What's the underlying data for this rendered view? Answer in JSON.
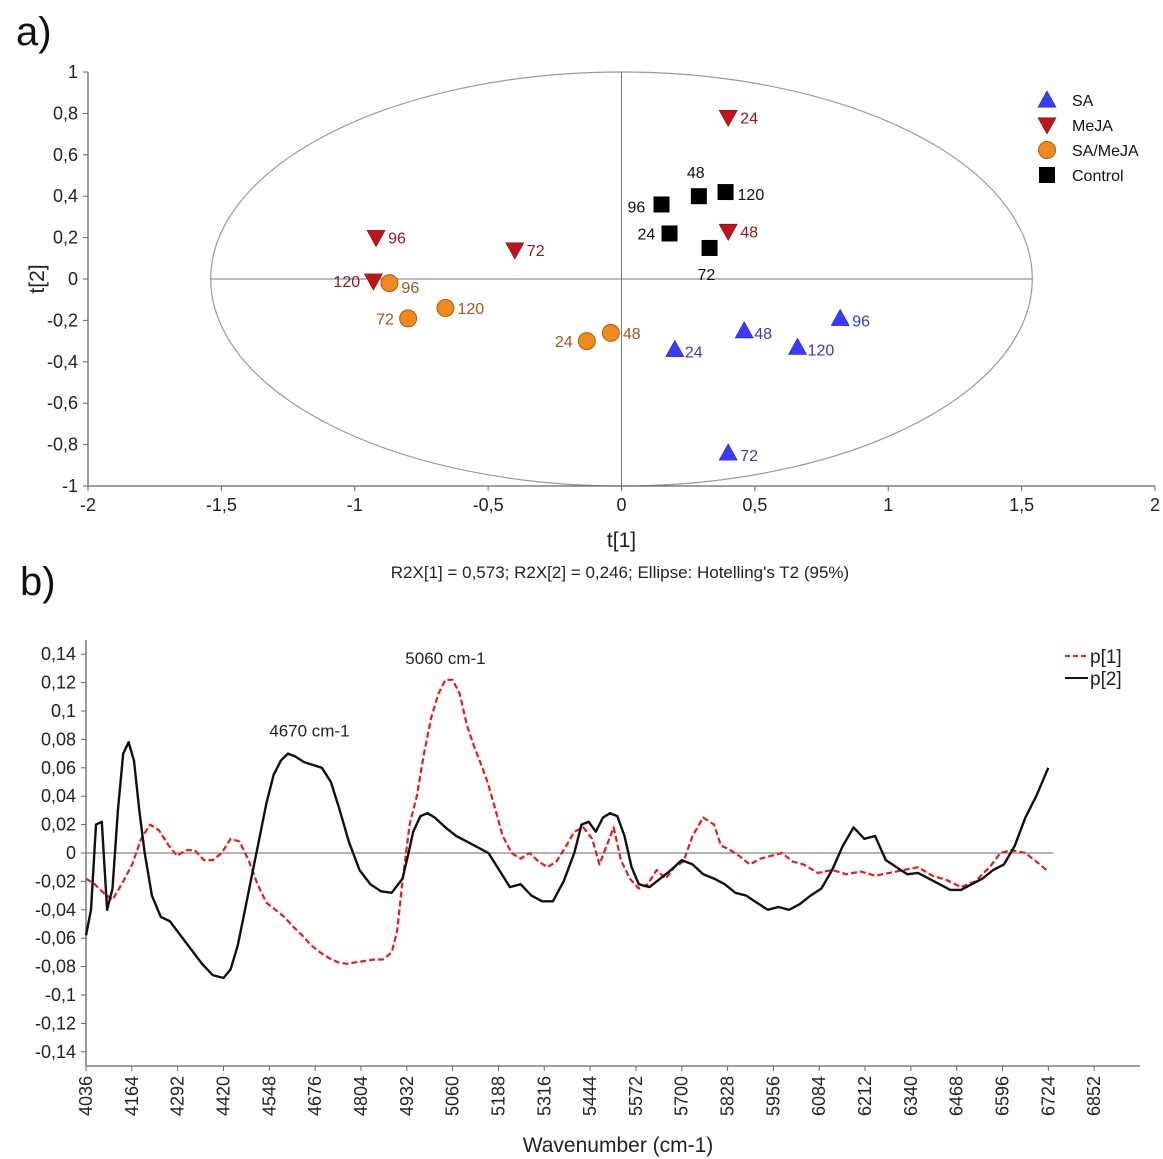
{
  "panels": {
    "a": "a)",
    "b": "b)"
  },
  "chart_data": [
    {
      "type": "scatter",
      "xlabel": "t[1]",
      "ylabel": "t[2]",
      "xlim": [
        -2,
        2
      ],
      "ylim": [
        -1,
        1
      ],
      "xticks": [
        "-2",
        "-1,5",
        "-1",
        "-0,5",
        "0",
        "0,5",
        "1",
        "1,5",
        "2"
      ],
      "yticks": [
        "1",
        "0,8",
        "0,6",
        "0,4",
        "0,2",
        "0",
        "-0,2",
        "-0,4",
        "-0,6",
        "-0,8",
        "-1"
      ],
      "caption": "R2X[1] = 0,573; R2X[2] = 0,246; Ellipse: Hotelling's T2 (95%)",
      "ellipse": {
        "rx": 1.54,
        "ry": 1.0
      },
      "legend_position": "top-right",
      "series": [
        {
          "name": "SA",
          "marker": "triangle-up",
          "color": "#3b3bff",
          "label_color": "#3a3ab0",
          "points": [
            {
              "x": 0.2,
              "y": -0.34,
              "label": "24"
            },
            {
              "x": 0.46,
              "y": -0.25,
              "label": "48"
            },
            {
              "x": 0.4,
              "y": -0.84,
              "label": "72"
            },
            {
              "x": 0.82,
              "y": -0.19,
              "label": "96"
            },
            {
              "x": 0.66,
              "y": -0.33,
              "label": "120"
            }
          ]
        },
        {
          "name": "MeJA",
          "marker": "triangle-down",
          "color": "#c0141c",
          "label_color": "#8a1a20",
          "points": [
            {
              "x": 0.4,
              "y": 0.78,
              "label": "24"
            },
            {
              "x": 0.4,
              "y": 0.23,
              "label": "48"
            },
            {
              "x": -0.4,
              "y": 0.14,
              "label": "72"
            },
            {
              "x": -0.92,
              "y": 0.2,
              "label": "96"
            },
            {
              "x": -0.93,
              "y": -0.01,
              "label": "120"
            }
          ]
        },
        {
          "name": "SA/MeJA",
          "marker": "circle",
          "color": "#f08a1c",
          "label_color": "#a0561a",
          "points": [
            {
              "x": -0.13,
              "y": -0.3,
              "label": "24"
            },
            {
              "x": -0.04,
              "y": -0.26,
              "label": "48"
            },
            {
              "x": -0.8,
              "y": -0.19,
              "label": "72"
            },
            {
              "x": -0.87,
              "y": -0.02,
              "label": "96"
            },
            {
              "x": -0.66,
              "y": -0.14,
              "label": "120"
            }
          ]
        },
        {
          "name": "Control",
          "marker": "square",
          "color": "#000000",
          "label_color": "#111111",
          "points": [
            {
              "x": 0.18,
              "y": 0.22,
              "label": "24"
            },
            {
              "x": 0.29,
              "y": 0.4,
              "label": "48"
            },
            {
              "x": 0.33,
              "y": 0.15,
              "label": "72"
            },
            {
              "x": 0.15,
              "y": 0.36,
              "label": "96"
            },
            {
              "x": 0.39,
              "y": 0.42,
              "label": "120"
            }
          ]
        }
      ]
    },
    {
      "type": "line",
      "xlabel": "Wavenumber (cm-1)",
      "ylabel": "",
      "xlim": [
        4036,
        6980
      ],
      "ylim": [
        -0.15,
        0.15
      ],
      "xticks": [
        "4036",
        "4164",
        "4292",
        "4420",
        "4548",
        "4676",
        "4804",
        "4932",
        "5060",
        "5188",
        "5316",
        "5444",
        "5572",
        "5700",
        "5828",
        "5956",
        "6084",
        "6212",
        "6340",
        "6468",
        "6596",
        "6724",
        "6852"
      ],
      "yticks": [
        "0,14",
        "0,12",
        "0,1",
        "0,08",
        "0,06",
        "0,04",
        "0,02",
        "0",
        "-0,02",
        "-0,04",
        "-0,06",
        "-0,08",
        "-0,1",
        "-0,12",
        "-0,14"
      ],
      "legend_position": "top-right",
      "annotations": [
        {
          "text": "5060 cm-1",
          "x": 5040,
          "y": 0.133
        },
        {
          "text": "4670 cm-1",
          "x": 4660,
          "y": 0.082
        }
      ],
      "series": [
        {
          "name": "p[1]",
          "color": "#e01e1e",
          "dash": true,
          "x": [
            4036,
            4060,
            4085,
            4110,
            4140,
            4165,
            4190,
            4215,
            4240,
            4265,
            4290,
            4315,
            4340,
            4365,
            4390,
            4415,
            4440,
            4465,
            4490,
            4515,
            4540,
            4565,
            4590,
            4615,
            4640,
            4665,
            4690,
            4715,
            4740,
            4765,
            4790,
            4815,
            4840,
            4865,
            4890,
            4905,
            4920,
            4940,
            4960,
            4980,
            5000,
            5020,
            5040,
            5060,
            5080,
            5100,
            5120,
            5140,
            5160,
            5180,
            5200,
            5225,
            5250,
            5275,
            5300,
            5325,
            5350,
            5375,
            5400,
            5425,
            5450,
            5470,
            5490,
            5510,
            5530,
            5555,
            5580,
            5605,
            5630,
            5655,
            5680,
            5705,
            5730,
            5760,
            5790,
            5810,
            5830,
            5860,
            5890,
            5920,
            5950,
            5980,
            6010,
            6040,
            6080,
            6120,
            6160,
            6200,
            6240,
            6280,
            6320,
            6360,
            6400,
            6440,
            6480,
            6520,
            6560,
            6590,
            6620,
            6660,
            6700,
            6724
          ],
          "y": [
            -0.018,
            -0.022,
            -0.028,
            -0.033,
            -0.02,
            -0.008,
            0.01,
            0.02,
            0.016,
            0.006,
            -0.002,
            0.002,
            0.002,
            -0.005,
            -0.005,
            0.0,
            0.01,
            0.008,
            -0.005,
            -0.022,
            -0.035,
            -0.04,
            -0.045,
            -0.052,
            -0.058,
            -0.065,
            -0.07,
            -0.074,
            -0.077,
            -0.078,
            -0.077,
            -0.076,
            -0.075,
            -0.075,
            -0.07,
            -0.055,
            -0.02,
            0.02,
            0.04,
            0.07,
            0.095,
            0.112,
            0.122,
            0.122,
            0.112,
            0.09,
            0.075,
            0.062,
            0.048,
            0.03,
            0.012,
            0.0,
            -0.004,
            0.0,
            -0.006,
            -0.01,
            -0.006,
            0.004,
            0.015,
            0.018,
            0.01,
            -0.008,
            0.005,
            0.018,
            -0.005,
            -0.018,
            -0.025,
            -0.022,
            -0.012,
            -0.018,
            -0.01,
            -0.006,
            0.012,
            0.025,
            0.02,
            0.005,
            0.003,
            -0.002,
            -0.008,
            -0.004,
            -0.002,
            0.0,
            -0.006,
            -0.008,
            -0.014,
            -0.012,
            -0.015,
            -0.013,
            -0.016,
            -0.014,
            -0.012,
            -0.01,
            -0.016,
            -0.019,
            -0.024,
            -0.02,
            -0.01,
            0.0,
            0.002,
            0.0,
            -0.008,
            -0.013
          ]
        },
        {
          "name": "p[2]",
          "color": "#111111",
          "dash": false,
          "x": [
            4036,
            4050,
            4064,
            4080,
            4095,
            4110,
            4125,
            4140,
            4155,
            4170,
            4185,
            4200,
            4220,
            4245,
            4270,
            4300,
            4330,
            4360,
            4390,
            4420,
            4440,
            4460,
            4480,
            4500,
            4520,
            4540,
            4560,
            4580,
            4600,
            4620,
            4645,
            4670,
            4695,
            4720,
            4745,
            4770,
            4800,
            4830,
            4860,
            4890,
            4920,
            4935,
            4950,
            4970,
            4990,
            5010,
            5040,
            5070,
            5100,
            5130,
            5160,
            5190,
            5220,
            5250,
            5280,
            5310,
            5340,
            5370,
            5400,
            5420,
            5440,
            5460,
            5480,
            5500,
            5520,
            5540,
            5560,
            5580,
            5610,
            5640,
            5670,
            5700,
            5730,
            5760,
            5790,
            5820,
            5850,
            5880,
            5910,
            5940,
            5970,
            6000,
            6030,
            6060,
            6090,
            6120,
            6150,
            6180,
            6210,
            6240,
            6270,
            6300,
            6330,
            6360,
            6390,
            6420,
            6450,
            6480,
            6510,
            6540,
            6570,
            6600,
            6630,
            6660,
            6690,
            6724
          ],
          "y": [
            -0.058,
            -0.04,
            0.02,
            0.022,
            -0.04,
            -0.025,
            0.03,
            0.07,
            0.078,
            0.065,
            0.03,
            0.0,
            -0.03,
            -0.045,
            -0.048,
            -0.058,
            -0.068,
            -0.078,
            -0.086,
            -0.088,
            -0.082,
            -0.065,
            -0.04,
            -0.015,
            0.01,
            0.035,
            0.055,
            0.065,
            0.07,
            0.068,
            0.064,
            0.062,
            0.06,
            0.05,
            0.03,
            0.008,
            -0.012,
            -0.022,
            -0.027,
            -0.028,
            -0.018,
            -0.002,
            0.015,
            0.026,
            0.028,
            0.025,
            0.018,
            0.012,
            0.008,
            0.004,
            0.0,
            -0.012,
            -0.024,
            -0.022,
            -0.03,
            -0.034,
            -0.034,
            -0.02,
            0.0,
            0.02,
            0.022,
            0.015,
            0.025,
            0.028,
            0.026,
            0.012,
            -0.01,
            -0.022,
            -0.024,
            -0.018,
            -0.012,
            -0.005,
            -0.008,
            -0.015,
            -0.018,
            -0.022,
            -0.028,
            -0.03,
            -0.035,
            -0.04,
            -0.038,
            -0.04,
            -0.036,
            -0.03,
            -0.025,
            -0.012,
            0.005,
            0.018,
            0.01,
            0.012,
            -0.005,
            -0.01,
            -0.015,
            -0.014,
            -0.018,
            -0.022,
            -0.026,
            -0.026,
            -0.022,
            -0.018,
            -0.012,
            -0.008,
            0.005,
            0.025,
            0.04,
            0.06
          ]
        }
      ]
    }
  ]
}
